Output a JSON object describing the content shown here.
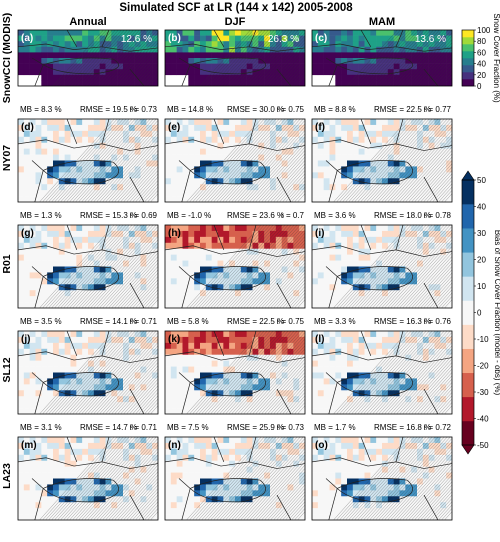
{
  "chart_data": {
    "type": "heatmap",
    "title": "Simulated SCF at LR (144 x 142) 2005-2008",
    "columns": [
      "Annual",
      "DJF",
      "MAM"
    ],
    "rows": [
      {
        "label": "SnowCCI (MODIS)",
        "kind": "observation",
        "panels": [
          {
            "letter": "(a)",
            "value_label": "12.6 %"
          },
          {
            "letter": "(b)",
            "value_label": "26.3 %"
          },
          {
            "letter": "(c)",
            "value_label": "13.6 %"
          }
        ]
      },
      {
        "label": "NY07",
        "kind": "bias",
        "panels": [
          {
            "letter": "(d)",
            "stats": {
              "mb": "MB = 8.3 %",
              "rmse": "RMSE = 19.5 %",
              "r": "r = 0.73"
            }
          },
          {
            "letter": "(e)",
            "stats": {
              "mb": "MB = 14.8 %",
              "rmse": "RMSE = 30.0 %",
              "r": "r = 0.75"
            }
          },
          {
            "letter": "(f)",
            "stats": {
              "mb": "MB = 8.8 %",
              "rmse": "RMSE = 22.5 %",
              "r": "r = 0.77"
            }
          }
        ]
      },
      {
        "label": "R01",
        "kind": "bias",
        "panels": [
          {
            "letter": "(g)",
            "stats": {
              "mb": "MB = 1.3 %",
              "rmse": "RMSE = 15.3 %",
              "r": "r = 0.69"
            }
          },
          {
            "letter": "(h)",
            "stats": {
              "mb": "MB = -1.0 %",
              "rmse": "RMSE = 23.6 %",
              "r": "r = 0.7"
            }
          },
          {
            "letter": "(i)",
            "stats": {
              "mb": "MB = 3.6 %",
              "rmse": "RMSE = 18.0 %",
              "r": "r = 0.78"
            }
          }
        ]
      },
      {
        "label": "SL12",
        "kind": "bias",
        "panels": [
          {
            "letter": "(j)",
            "stats": {
              "mb": "MB = 3.5 %",
              "rmse": "RMSE = 14.1 %",
              "r": "r = 0.71"
            }
          },
          {
            "letter": "(k)",
            "stats": {
              "mb": "MB = 5.8 %",
              "rmse": "RMSE = 22.5 %",
              "r": "r = 0.75"
            }
          },
          {
            "letter": "(l)",
            "stats": {
              "mb": "MB = 3.3 %",
              "rmse": "RMSE = 16.3 %",
              "r": "r = 0.76"
            }
          }
        ]
      },
      {
        "label": "LA23",
        "kind": "bias",
        "panels": [
          {
            "letter": "(m)",
            "stats": {
              "mb": "MB = 3.1 %",
              "rmse": "RMSE = 14.7 %",
              "r": "r = 0.71"
            }
          },
          {
            "letter": "(n)",
            "stats": {
              "mb": "MB = 7.5 %",
              "rmse": "RMSE = 25.9 %",
              "r": "r = 0.73"
            }
          },
          {
            "letter": "(o)",
            "stats": {
              "mb": "MB = 1.7 %",
              "rmse": "RMSE = 16.8 %",
              "r": "r = 0.72"
            }
          }
        ]
      }
    ],
    "colorbars": [
      {
        "label": "Snow Cover Fraction (%)",
        "ticks": [
          0,
          20,
          40,
          60,
          80,
          100
        ],
        "range": [
          0,
          100
        ],
        "colors": [
          "#440154",
          "#46317e",
          "#365a8c",
          "#277e8e",
          "#1fa187",
          "#4ac16d",
          "#a0da39",
          "#fde725"
        ]
      },
      {
        "label": "Bias of Snow Cover Fraction (model - obs) (%)",
        "ticks": [
          -50,
          -40,
          -30,
          -20,
          -10,
          0,
          10,
          20,
          30,
          40,
          50
        ],
        "range": [
          -50,
          50
        ],
        "colors": [
          "#67001f",
          "#b2182b",
          "#d6604d",
          "#f4a582",
          "#fddbc7",
          "#f7f7f7",
          "#d1e5f0",
          "#92c5de",
          "#4393c3",
          "#2166ac",
          "#053061"
        ]
      }
    ]
  }
}
